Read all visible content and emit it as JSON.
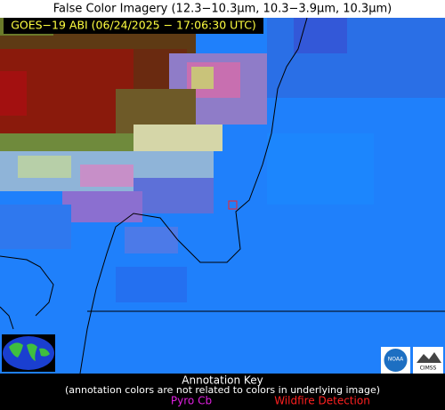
{
  "title": "False Color Imagery (12.3−10.3µm, 10.3−3.9µm, 10.3µm)",
  "image": {
    "timestamp": "GOES−19 ABI (06/24/2025 − 17:06:30 UTC)"
  },
  "logos": {
    "noaa": "NOAA",
    "cimss": "CIMSS"
  },
  "annotation_key": {
    "title": "Annotation Key",
    "note": "(annotation colors are not related to colors in underlying image)",
    "items": [
      "Pyro Cb",
      "Wildfire Detection"
    ]
  }
}
